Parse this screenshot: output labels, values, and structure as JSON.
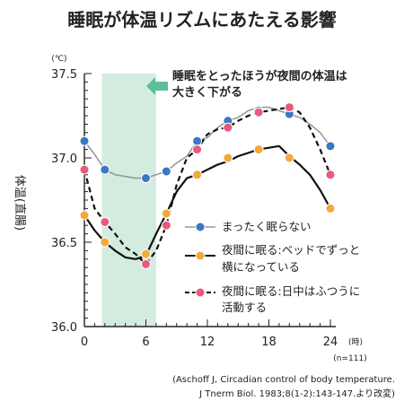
{
  "chart_data": {
    "type": "line",
    "title": "睡眠が体温リズムにあたえる影響",
    "ylabel": "体温(直腸)",
    "yunit": "(℃)",
    "xunit": "(時)",
    "n_label": "(n=111)",
    "xlim": [
      0,
      24
    ],
    "ylim": [
      36.0,
      37.5
    ],
    "xticks": [
      "0",
      "6",
      "12",
      "18",
      "24"
    ],
    "yticks": [
      "36.0",
      "36.5",
      "37.0",
      "37.5"
    ],
    "shaded_region": [
      1.7,
      7.0
    ],
    "annotation": [
      "睡眠をとったほうが夜間の体温は",
      "大きく下がる"
    ],
    "citation": [
      "(Aschoff J, Circadian control of body temperature.",
      "J Tnerm Biol. 1983;8(1-2):143-147.より改変)"
    ],
    "series": [
      {
        "name": "まったく眠らない",
        "style": "solid",
        "line_color": "#999999",
        "marker_color": "#3a78c2",
        "line": [
          [
            0,
            37.1
          ],
          [
            1,
            37.02
          ],
          [
            2,
            36.93
          ],
          [
            3,
            36.9
          ],
          [
            4,
            36.89
          ],
          [
            5,
            36.88
          ],
          [
            6,
            36.88
          ],
          [
            7,
            36.9
          ],
          [
            8,
            36.92
          ],
          [
            9,
            36.97
          ],
          [
            10,
            37.01
          ],
          [
            11,
            37.1
          ],
          [
            12,
            37.12
          ],
          [
            13,
            37.18
          ],
          [
            14,
            37.22
          ],
          [
            15,
            37.24
          ],
          [
            16,
            37.28
          ],
          [
            17,
            37.3
          ],
          [
            18,
            37.3
          ],
          [
            19,
            37.28
          ],
          [
            20,
            37.26
          ],
          [
            21,
            37.24
          ],
          [
            22,
            37.2
          ],
          [
            23,
            37.15
          ],
          [
            24,
            37.07
          ]
        ],
        "markers": [
          [
            0,
            37.1
          ],
          [
            2,
            36.93
          ],
          [
            6,
            36.88
          ],
          [
            8,
            36.92
          ],
          [
            11,
            37.1
          ],
          [
            14,
            37.22
          ],
          [
            17,
            37.28
          ],
          [
            20,
            37.26
          ],
          [
            24,
            37.07
          ]
        ]
      },
      {
        "name": "夜間に眠る:ベッドでずっと横になっている",
        "label_lines": [
          "夜間に眠る:ベッドでずっと",
          "横になっている"
        ],
        "style": "solid",
        "line_color": "#111111",
        "marker_color": "#f2a93b",
        "line": [
          [
            0,
            36.66
          ],
          [
            1,
            36.57
          ],
          [
            2,
            36.5
          ],
          [
            3,
            36.45
          ],
          [
            4,
            36.41
          ],
          [
            5,
            36.4
          ],
          [
            6,
            36.42
          ],
          [
            7,
            36.55
          ],
          [
            8,
            36.67
          ],
          [
            9,
            36.8
          ],
          [
            10,
            36.88
          ],
          [
            11,
            36.9
          ],
          [
            12,
            36.93
          ],
          [
            13,
            36.96
          ],
          [
            14,
            36.98
          ],
          [
            15,
            37.01
          ],
          [
            16,
            37.03
          ],
          [
            17,
            37.05
          ],
          [
            18,
            37.06
          ],
          [
            19,
            37.07
          ],
          [
            20,
            37.01
          ],
          [
            21,
            36.96
          ],
          [
            22,
            36.9
          ],
          [
            23,
            36.81
          ],
          [
            24,
            36.7
          ]
        ],
        "markers": [
          [
            0,
            36.66
          ],
          [
            2,
            36.5
          ],
          [
            6,
            36.43
          ],
          [
            8,
            36.67
          ],
          [
            11,
            36.9
          ],
          [
            14,
            37.0
          ],
          [
            17,
            37.05
          ],
          [
            20,
            37.0
          ],
          [
            24,
            36.7
          ]
        ]
      },
      {
        "name": "夜間に眠る:日中はふつうに活動する",
        "label_lines": [
          "夜間に眠る:日中はふつうに",
          "活動する"
        ],
        "style": "dashed",
        "line_color": "#111111",
        "marker_color": "#e85a7a",
        "line": [
          [
            0,
            36.93
          ],
          [
            1,
            36.7
          ],
          [
            2,
            36.62
          ],
          [
            3,
            36.55
          ],
          [
            4,
            36.47
          ],
          [
            5,
            36.43
          ],
          [
            6,
            36.37
          ],
          [
            7,
            36.45
          ],
          [
            8,
            36.6
          ],
          [
            9,
            36.84
          ],
          [
            10,
            37.0
          ],
          [
            11,
            37.05
          ],
          [
            12,
            37.14
          ],
          [
            13,
            37.17
          ],
          [
            14,
            37.18
          ],
          [
            15,
            37.22
          ],
          [
            16,
            37.25
          ],
          [
            17,
            37.27
          ],
          [
            18,
            37.28
          ],
          [
            19,
            37.29
          ],
          [
            20,
            37.3
          ],
          [
            21,
            37.27
          ],
          [
            22,
            37.18
          ],
          [
            23,
            37.05
          ],
          [
            24,
            36.9
          ]
        ],
        "markers": [
          [
            0,
            36.93
          ],
          [
            2,
            36.62
          ],
          [
            6,
            36.37
          ],
          [
            8,
            36.6
          ],
          [
            11,
            37.05
          ],
          [
            14,
            37.18
          ],
          [
            17,
            37.27
          ],
          [
            20,
            37.3
          ],
          [
            24,
            36.9
          ]
        ]
      }
    ]
  }
}
